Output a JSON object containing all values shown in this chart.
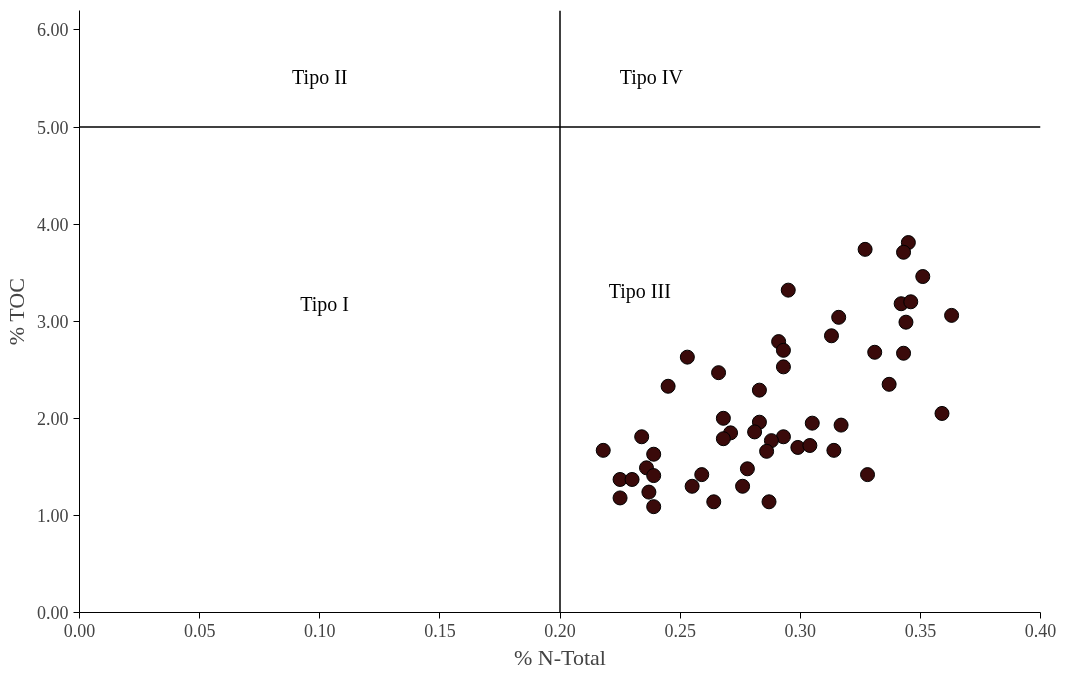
{
  "chart_data": {
    "type": "scatter",
    "xlabel": "% N-Total",
    "ylabel": "% TOC",
    "x": [
      0.327,
      0.345,
      0.343,
      0.351,
      0.295,
      0.342,
      0.346,
      0.363,
      0.316,
      0.344,
      0.313,
      0.291,
      0.293,
      0.331,
      0.343,
      0.253,
      0.293,
      0.266,
      0.245,
      0.337,
      0.283,
      0.359,
      0.268,
      0.283,
      0.305,
      0.317,
      0.271,
      0.268,
      0.281,
      0.293,
      0.288,
      0.286,
      0.299,
      0.304,
      0.314,
      0.218,
      0.234,
      0.239,
      0.236,
      0.239,
      0.225,
      0.23,
      0.225,
      0.237,
      0.239,
      0.259,
      0.255,
      0.264,
      0.278,
      0.276,
      0.287,
      0.328
    ],
    "series": [
      {
        "color": "#3a0a0a",
        "values": [
          3.74,
          3.81,
          3.71,
          3.46,
          3.32,
          3.18,
          3.2,
          3.06,
          3.04,
          2.99,
          2.85,
          2.79,
          2.7,
          2.68,
          2.67,
          2.63,
          2.53,
          2.47,
          2.33,
          2.35,
          2.29,
          2.05,
          2.0,
          1.96,
          1.95,
          1.93,
          1.85,
          1.79,
          1.86,
          1.81,
          1.77,
          1.66,
          1.7,
          1.72,
          1.67,
          1.67,
          1.81,
          1.63,
          1.49,
          1.41,
          1.37,
          1.37,
          1.18,
          1.24,
          1.09,
          1.42,
          1.3,
          1.14,
          1.48,
          1.3,
          1.14,
          1.42
        ]
      }
    ],
    "xlim": [
      0,
      0.4
    ],
    "ylim": [
      0,
      6.2
    ],
    "xticks": [
      {
        "value": 0,
        "label": "0.00"
      },
      {
        "value": 0.05,
        "label": "0.05"
      },
      {
        "value": 0.1,
        "label": "0.10"
      },
      {
        "value": 0.15,
        "label": "0.15"
      },
      {
        "value": 0.2,
        "label": "0.20"
      },
      {
        "value": 0.25,
        "label": "0.25"
      },
      {
        "value": 0.3,
        "label": "0.30"
      },
      {
        "value": 0.35,
        "label": "0.35"
      },
      {
        "value": 0.4,
        "label": "0.40"
      }
    ],
    "yticks": [
      {
        "value": 0,
        "label": "0.00"
      },
      {
        "value": 1,
        "label": "1.00"
      },
      {
        "value": 2,
        "label": "2.00"
      },
      {
        "value": 3,
        "label": "3.00"
      },
      {
        "value": 4,
        "label": "4.00"
      },
      {
        "value": 5,
        "label": "5.00"
      },
      {
        "value": 6,
        "label": "6.00"
      }
    ],
    "ref_lines": [
      {
        "axis": "x",
        "value": 0.2,
        "color": "#000000"
      },
      {
        "axis": "y",
        "value": 5.0,
        "color": "#000000"
      }
    ],
    "annotations": [
      "Tipo II",
      "Tipo IV",
      "Tipo I",
      "Tipo III"
    ],
    "marker": "circle",
    "grid": false
  }
}
